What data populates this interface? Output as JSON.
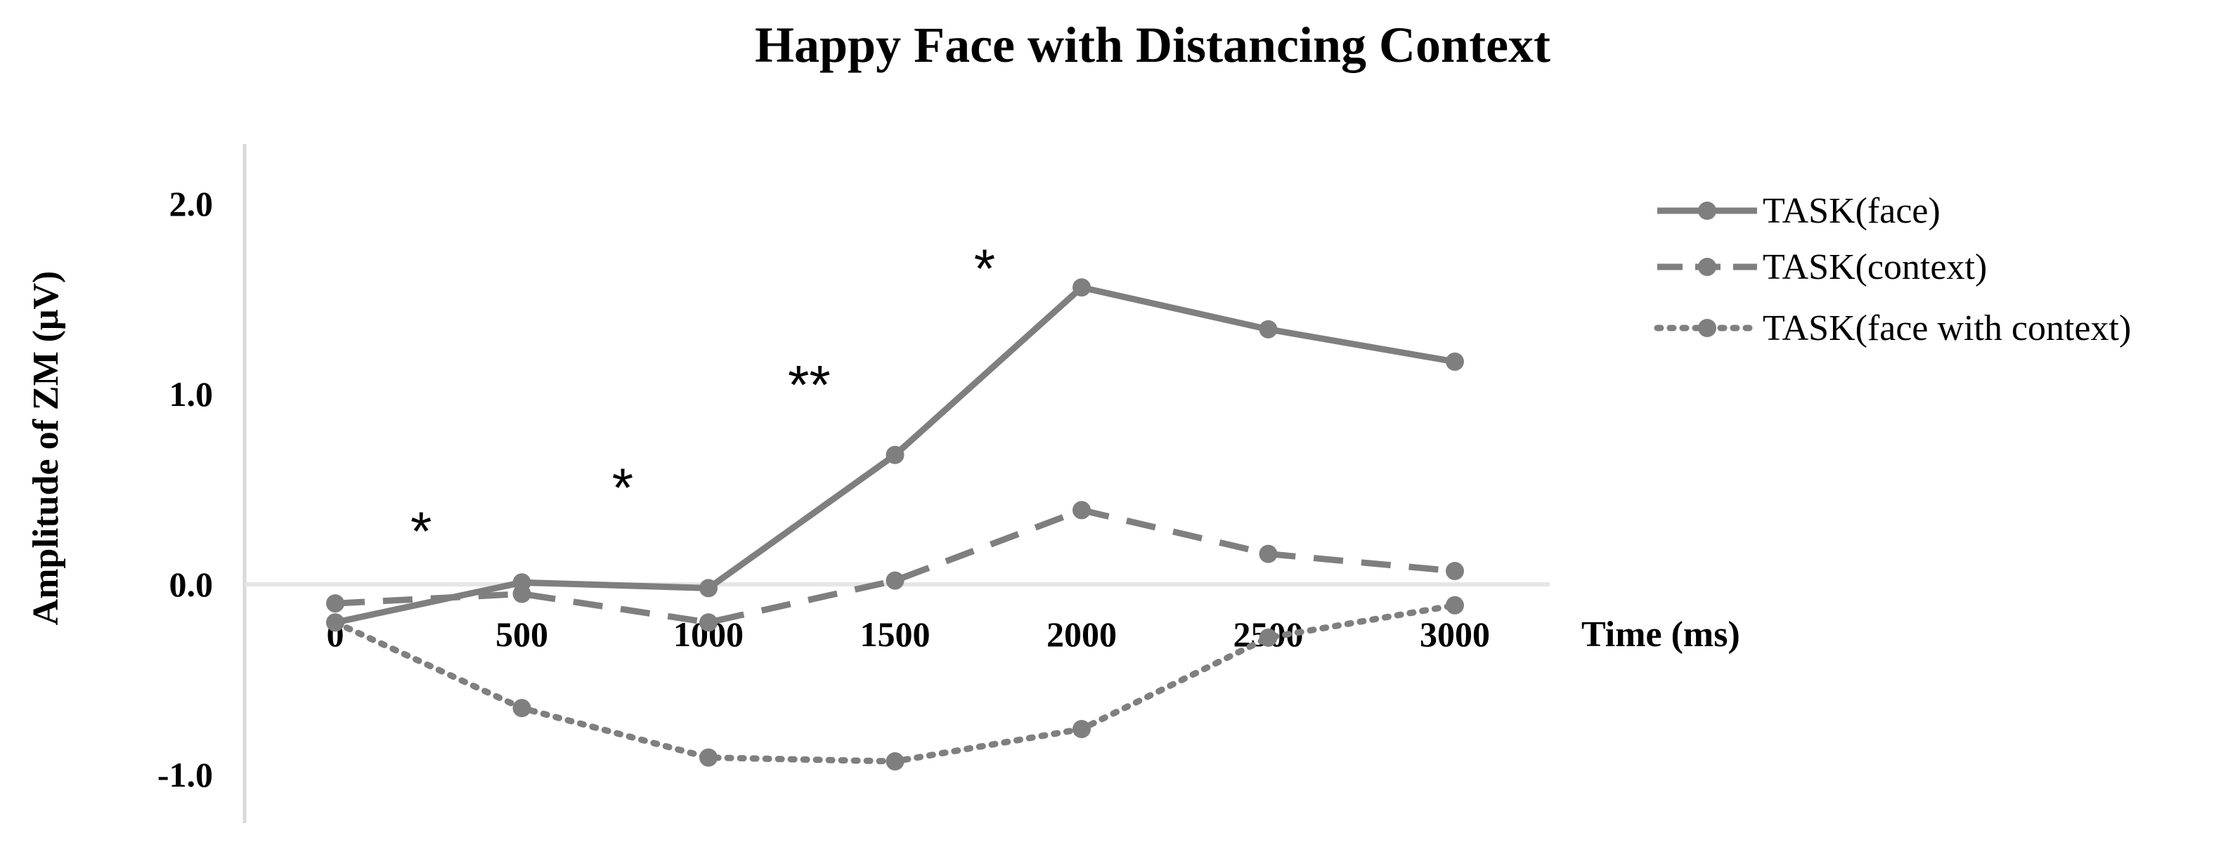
{
  "chart_data": {
    "type": "line",
    "title": "Happy Face with Distancing Context",
    "xlabel": "Time (ms)",
    "ylabel": "Amplitude of ZM (μV)",
    "x": [
      0,
      500,
      1000,
      1500,
      2000,
      2500,
      3000
    ],
    "x_tick_labels": [
      "0",
      "500",
      "1000",
      "1500",
      "2000",
      "2500",
      "3000"
    ],
    "y_tick_labels": [
      "2.0",
      "1.0",
      "0.0",
      "-1.0"
    ],
    "y_ticks": [
      2.0,
      1.0,
      0.0,
      -1.0
    ],
    "xlim": [
      0,
      3000
    ],
    "ylim": [
      -1.2,
      2.3
    ],
    "grid": false,
    "legend_position": "right",
    "series": [
      {
        "name": "TASK(face)",
        "style": "solid",
        "color": "#7f7f7f",
        "values": [
          -0.2,
          0.01,
          -0.02,
          0.68,
          1.56,
          1.34,
          1.17
        ]
      },
      {
        "name": "TASK(context)",
        "style": "dashed",
        "color": "#7f7f7f",
        "values": [
          -0.1,
          -0.05,
          -0.2,
          0.02,
          0.39,
          0.16,
          0.07
        ]
      },
      {
        "name": "TASK(face with context)",
        "style": "dotted",
        "color": "#7f7f7f",
        "values": [
          -0.2,
          -0.65,
          -0.91,
          -0.93,
          -0.76,
          -0.28,
          -0.11
        ]
      }
    ],
    "annotations": [
      {
        "text": "*",
        "x": 230,
        "y": 0.18
      },
      {
        "text": "*",
        "x": 770,
        "y": 0.41
      },
      {
        "text": "**",
        "x": 1270,
        "y": 0.95
      },
      {
        "text": "*",
        "x": 1740,
        "y": 1.56
      }
    ]
  }
}
